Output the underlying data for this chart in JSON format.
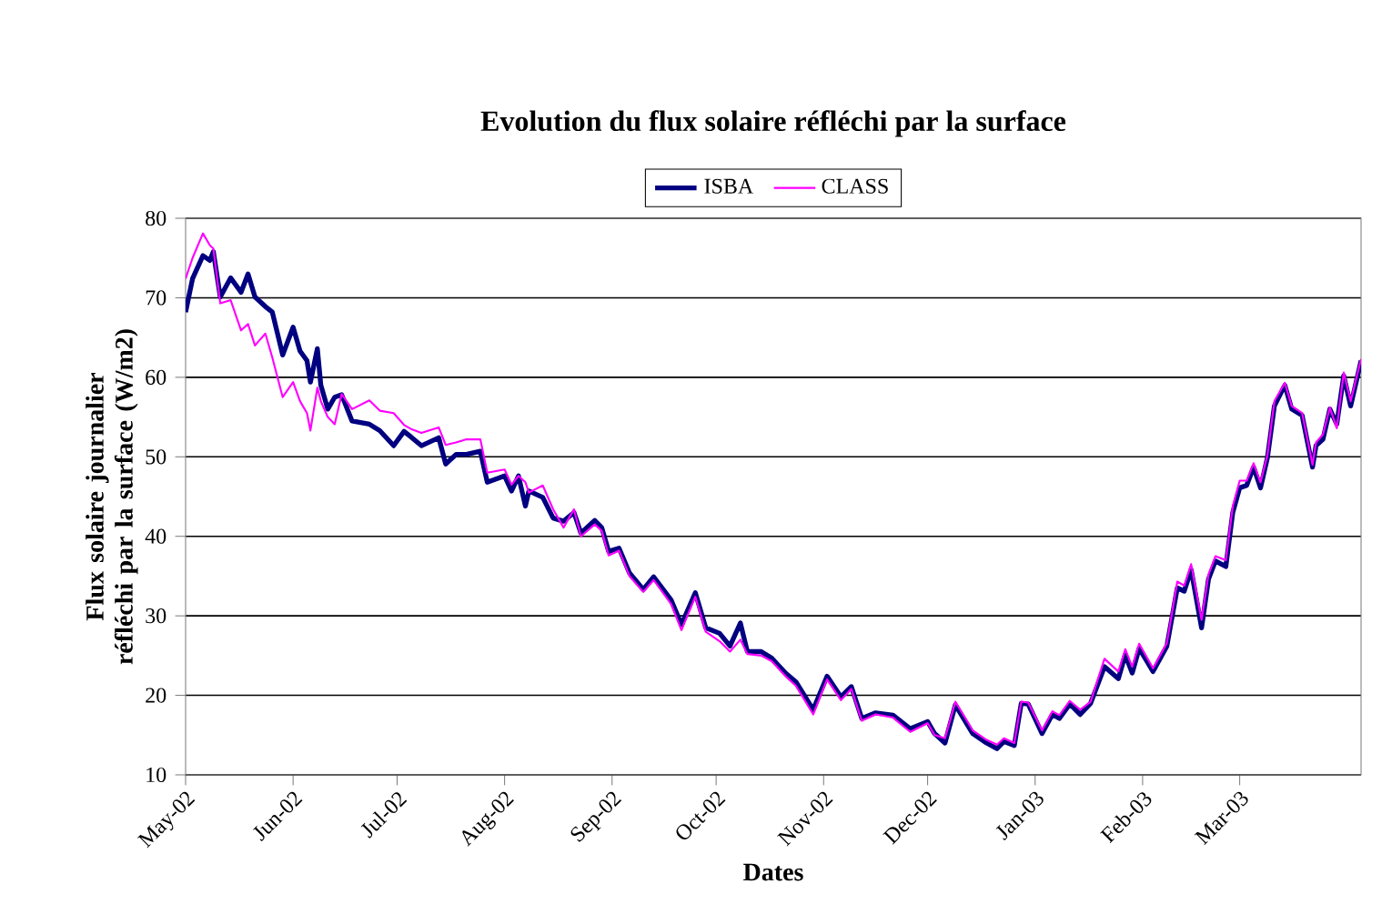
{
  "chart_data": {
    "type": "line",
    "title": "Evolution du flux solaire réfléchi par la surface",
    "xlabel": "Dates",
    "ylabel": "Flux solaire journalier réfléchi par la surface (W/m2)",
    "x": [
      "2002-05-01",
      "2002-05-03",
      "2002-05-06",
      "2002-05-08",
      "2002-05-09",
      "2002-05-11",
      "2002-05-14",
      "2002-05-17",
      "2002-05-19",
      "2002-05-21",
      "2002-05-24",
      "2002-05-26",
      "2002-05-29",
      "2002-06-01",
      "2002-06-03",
      "2002-06-05",
      "2002-06-06",
      "2002-06-08",
      "2002-06-09",
      "2002-06-11",
      "2002-06-13",
      "2002-06-15",
      "2002-06-18",
      "2002-06-23",
      "2002-06-26",
      "2002-06-30",
      "2002-07-03",
      "2002-07-05",
      "2002-07-08",
      "2002-07-13",
      "2002-07-15",
      "2002-07-18",
      "2002-07-21",
      "2002-07-25",
      "2002-07-27",
      "2002-08-01",
      "2002-08-03",
      "2002-08-05",
      "2002-08-07",
      "2002-08-08",
      "2002-08-12",
      "2002-08-15",
      "2002-08-18",
      "2002-08-21",
      "2002-08-23",
      "2002-08-27",
      "2002-08-29",
      "2002-08-31",
      "2002-09-03",
      "2002-09-06",
      "2002-09-10",
      "2002-09-13",
      "2002-09-18",
      "2002-09-21",
      "2002-09-25",
      "2002-09-28",
      "2002-10-02",
      "2002-10-05",
      "2002-10-08",
      "2002-10-10",
      "2002-10-14",
      "2002-10-17",
      "2002-10-21",
      "2002-10-24",
      "2002-10-29",
      "2002-11-02",
      "2002-11-06",
      "2002-11-09",
      "2002-11-12",
      "2002-11-16",
      "2002-11-21",
      "2002-11-26",
      "2002-12-01",
      "2002-12-03",
      "2002-12-06",
      "2002-12-09",
      "2002-12-14",
      "2002-12-18",
      "2002-12-21",
      "2002-12-23",
      "2002-12-26",
      "2002-12-28",
      "2002-12-30",
      "2003-01-03",
      "2003-01-06",
      "2003-01-08",
      "2003-01-11",
      "2003-01-14",
      "2003-01-17",
      "2003-01-21",
      "2003-01-25",
      "2003-01-27",
      "2003-01-29",
      "2003-01-31",
      "2003-02-04",
      "2003-02-08",
      "2003-02-11",
      "2003-02-13",
      "2003-02-15",
      "2003-02-18",
      "2003-02-20",
      "2003-02-22",
      "2003-02-25",
      "2003-02-27",
      "2003-03-01",
      "2003-03-03",
      "2003-03-05",
      "2003-03-07",
      "2003-03-09",
      "2003-03-11",
      "2003-03-14",
      "2003-03-16",
      "2003-03-19",
      "2003-03-22",
      "2003-03-23",
      "2003-03-25",
      "2003-03-27",
      "2003-03-29",
      "2003-03-31",
      "2003-04-02",
      "2003-04-05"
    ],
    "series": [
      {
        "name": "ISBA",
        "color": "#000080",
        "values": [
          68.2,
          72.4,
          75.3,
          74.7,
          75.8,
          70.1,
          72.5,
          70.7,
          73.0,
          70.1,
          68.9,
          68.2,
          62.8,
          66.3,
          63.3,
          62.1,
          59.4,
          63.6,
          59.0,
          56.0,
          57.5,
          57.8,
          54.5,
          54.1,
          53.3,
          51.4,
          53.2,
          52.5,
          51.4,
          52.4,
          49.1,
          50.3,
          50.3,
          50.7,
          46.8,
          47.6,
          45.7,
          47.6,
          43.8,
          45.7,
          44.9,
          42.3,
          41.9,
          43.0,
          40.4,
          42.0,
          41.1,
          38.1,
          38.5,
          35.4,
          33.3,
          34.9,
          32.0,
          28.9,
          32.9,
          28.5,
          27.8,
          26.2,
          29.1,
          25.5,
          25.5,
          24.7,
          22.8,
          21.7,
          18.2,
          22.4,
          19.8,
          21.1,
          17.1,
          17.8,
          17.5,
          15.8,
          16.7,
          15.2,
          14.0,
          18.8,
          15.2,
          14.0,
          13.3,
          14.2,
          13.7,
          19.0,
          18.9,
          15.2,
          17.6,
          17.1,
          18.9,
          17.6,
          19.0,
          23.6,
          22.1,
          25.1,
          22.8,
          25.9,
          23.0,
          26.2,
          33.5,
          33.1,
          35.8,
          28.5,
          34.6,
          36.9,
          36.2,
          43.0,
          46.1,
          46.4,
          48.7,
          46.1,
          49.9,
          56.4,
          59.0,
          56.0,
          55.2,
          48.7,
          51.4,
          52.2,
          56.0,
          54.1,
          60.2,
          56.4,
          62.1
        ]
      },
      {
        "name": "CLASS",
        "color": "#ff00ff",
        "values": [
          72.4,
          75.0,
          78.1,
          76.6,
          76.2,
          69.3,
          69.7,
          65.9,
          66.7,
          64.0,
          65.5,
          62.5,
          57.5,
          59.4,
          57.0,
          55.5,
          53.3,
          58.7,
          57.0,
          55.0,
          54.1,
          57.9,
          56.0,
          57.1,
          55.8,
          55.5,
          54.0,
          53.5,
          53.0,
          53.7,
          51.5,
          51.8,
          52.2,
          52.2,
          48.0,
          48.4,
          46.5,
          47.6,
          46.8,
          45.5,
          46.4,
          43.4,
          41.1,
          43.4,
          40.0,
          41.5,
          40.7,
          37.6,
          38.2,
          35.0,
          33.0,
          34.5,
          31.5,
          28.2,
          32.4,
          28.0,
          26.8,
          25.5,
          27.0,
          25.2,
          25.0,
          24.3,
          22.4,
          21.2,
          17.6,
          22.0,
          19.4,
          20.8,
          16.8,
          17.6,
          17.2,
          15.4,
          16.5,
          15.0,
          14.6,
          19.2,
          15.6,
          14.4,
          13.8,
          14.6,
          14.0,
          19.2,
          19.1,
          15.6,
          18.0,
          17.5,
          19.3,
          18.2,
          19.2,
          24.6,
          23.0,
          25.8,
          23.6,
          26.5,
          23.4,
          26.6,
          34.3,
          33.8,
          36.5,
          29.5,
          35.2,
          37.5,
          37.0,
          43.8,
          47.0,
          47.0,
          49.2,
          46.8,
          50.2,
          57.0,
          59.3,
          56.4,
          55.5,
          49.0,
          51.8,
          52.8,
          56.2,
          53.6,
          60.6,
          57.0,
          62.3
        ]
      }
    ],
    "xlim": [
      "2002-05-01",
      "2003-04-05"
    ],
    "xticks": [
      {
        "value": "2002-05-01",
        "label": "May-02"
      },
      {
        "value": "2002-06-01",
        "label": "Jun-02"
      },
      {
        "value": "2002-07-01",
        "label": "Jul-02"
      },
      {
        "value": "2002-08-01",
        "label": "Aug-02"
      },
      {
        "value": "2002-09-01",
        "label": "Sep-02"
      },
      {
        "value": "2002-10-01",
        "label": "Oct-02"
      },
      {
        "value": "2002-11-01",
        "label": "Nov-02"
      },
      {
        "value": "2002-12-01",
        "label": "Dec-02"
      },
      {
        "value": "2003-01-01",
        "label": "Jan-03"
      },
      {
        "value": "2003-02-01",
        "label": "Feb-03"
      },
      {
        "value": "2003-03-01",
        "label": "Mar-03"
      }
    ],
    "ylim": [
      10,
      80
    ],
    "yticks": [
      10,
      20,
      30,
      40,
      50,
      60,
      70,
      80
    ],
    "grid": "y",
    "legend": "top"
  }
}
